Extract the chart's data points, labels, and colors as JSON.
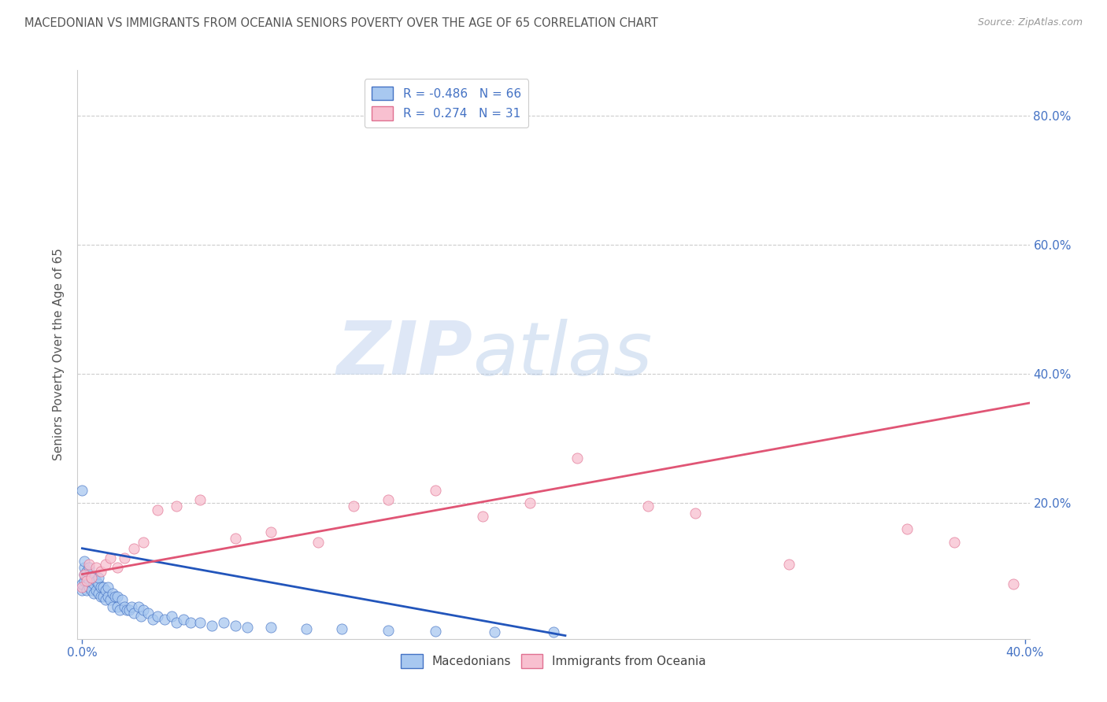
{
  "title": "MACEDONIAN VS IMMIGRANTS FROM OCEANIA SENIORS POVERTY OVER THE AGE OF 65 CORRELATION CHART",
  "source": "Source: ZipAtlas.com",
  "ylabel": "Seniors Poverty Over the Age of 65",
  "xlim": [
    -0.002,
    0.402
  ],
  "ylim": [
    -0.01,
    0.87
  ],
  "xtick_positions": [
    0.0,
    0.4
  ],
  "xtick_labels": [
    "0.0%",
    "40.0%"
  ],
  "ytick_positions": [
    0.2,
    0.4,
    0.6,
    0.8
  ],
  "ytick_labels": [
    "20.0%",
    "40.0%",
    "60.0%",
    "80.0%"
  ],
  "legend_labels": [
    "Macedonians",
    "Immigrants from Oceania"
  ],
  "blue_face_color": "#a8c8f0",
  "blue_edge_color": "#4472c4",
  "pink_face_color": "#f8c0d0",
  "pink_edge_color": "#e07090",
  "blue_line_color": "#2255bb",
  "pink_line_color": "#e05575",
  "R_blue": -0.486,
  "N_blue": 66,
  "R_pink": 0.274,
  "N_pink": 31,
  "watermark_zip": "ZIP",
  "watermark_atlas": "atlas",
  "background_color": "#ffffff",
  "grid_color": "#cccccc",
  "title_color": "#555555",
  "tick_color": "#4472c4",
  "ylabel_color": "#555555",
  "blue_trend_x0": 0.0,
  "blue_trend_x1": 0.205,
  "blue_trend_y0": 0.13,
  "blue_trend_y1": -0.005,
  "pink_trend_x0": 0.0,
  "pink_trend_x1": 0.402,
  "pink_trend_y0": 0.09,
  "pink_trend_y1": 0.355,
  "blue_points_x": [
    0.0,
    0.0,
    0.001,
    0.001,
    0.001,
    0.001,
    0.002,
    0.002,
    0.002,
    0.003,
    0.003,
    0.003,
    0.004,
    0.004,
    0.005,
    0.005,
    0.005,
    0.006,
    0.006,
    0.007,
    0.007,
    0.007,
    0.008,
    0.008,
    0.009,
    0.009,
    0.01,
    0.01,
    0.011,
    0.011,
    0.012,
    0.013,
    0.013,
    0.014,
    0.015,
    0.015,
    0.016,
    0.017,
    0.018,
    0.019,
    0.02,
    0.021,
    0.022,
    0.024,
    0.025,
    0.026,
    0.028,
    0.03,
    0.032,
    0.035,
    0.038,
    0.04,
    0.043,
    0.046,
    0.05,
    0.055,
    0.06,
    0.065,
    0.07,
    0.08,
    0.095,
    0.11,
    0.13,
    0.15,
    0.175,
    0.2
  ],
  "blue_points_y": [
    0.065,
    0.075,
    0.08,
    0.09,
    0.1,
    0.11,
    0.065,
    0.085,
    0.095,
    0.07,
    0.08,
    0.1,
    0.065,
    0.085,
    0.06,
    0.075,
    0.085,
    0.065,
    0.08,
    0.06,
    0.075,
    0.085,
    0.055,
    0.07,
    0.055,
    0.07,
    0.05,
    0.065,
    0.055,
    0.07,
    0.05,
    0.04,
    0.06,
    0.055,
    0.04,
    0.055,
    0.035,
    0.05,
    0.04,
    0.035,
    0.035,
    0.04,
    0.03,
    0.04,
    0.025,
    0.035,
    0.03,
    0.02,
    0.025,
    0.02,
    0.025,
    0.015,
    0.02,
    0.015,
    0.015,
    0.01,
    0.015,
    0.01,
    0.008,
    0.008,
    0.005,
    0.005,
    0.003,
    0.002,
    0.001,
    0.001
  ],
  "blue_outlier_x": [
    0.0
  ],
  "blue_outlier_y": [
    0.22
  ],
  "pink_points_x": [
    0.0,
    0.001,
    0.002,
    0.003,
    0.004,
    0.006,
    0.008,
    0.01,
    0.012,
    0.015,
    0.018,
    0.022,
    0.026,
    0.032,
    0.04,
    0.05,
    0.065,
    0.08,
    0.1,
    0.115,
    0.13,
    0.15,
    0.17,
    0.19,
    0.21,
    0.24,
    0.26,
    0.3,
    0.35,
    0.37,
    0.395
  ],
  "pink_points_y": [
    0.07,
    0.09,
    0.08,
    0.105,
    0.085,
    0.1,
    0.095,
    0.105,
    0.115,
    0.1,
    0.115,
    0.13,
    0.14,
    0.19,
    0.195,
    0.205,
    0.145,
    0.155,
    0.14,
    0.195,
    0.205,
    0.22,
    0.18,
    0.2,
    0.27,
    0.195,
    0.185,
    0.105,
    0.16,
    0.14,
    0.075
  ]
}
